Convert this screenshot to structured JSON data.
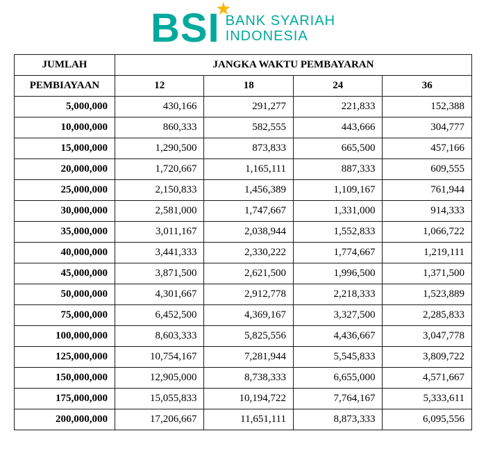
{
  "logo": {
    "abbrev": "BSI",
    "line1": "BANK SYARIAH",
    "line2": "INDONESIA",
    "brand_color": "#00a99d",
    "accent_color": "#f7b500"
  },
  "table": {
    "type": "table",
    "header_jumlah": "JUMLAH",
    "header_pembiayaan": "PEMBIAYAAN",
    "header_jangka": "JANGKA WAKTU PEMBAYARAN",
    "term_labels": [
      "12",
      "18",
      "24",
      "36"
    ],
    "border_color": "#1a1a1a",
    "text_color": "#000000",
    "background_color": "#ffffff",
    "header_fontsize": 15,
    "cell_fontsize": 15,
    "amount_align": "right",
    "value_align": "right",
    "column_widths_pct": [
      22,
      19.5,
      19.5,
      19.5,
      19.5
    ],
    "rows": [
      {
        "amount": "5,000,000",
        "v": [
          "430,166",
          "291,277",
          "221,833",
          "152,388"
        ]
      },
      {
        "amount": "10,000,000",
        "v": [
          "860,333",
          "582,555",
          "443,666",
          "304,777"
        ]
      },
      {
        "amount": "15,000,000",
        "v": [
          "1,290,500",
          "873,833",
          "665,500",
          "457,166"
        ]
      },
      {
        "amount": "20,000,000",
        "v": [
          "1,720,667",
          "1,165,111",
          "887,333",
          "609,555"
        ]
      },
      {
        "amount": "25,000,000",
        "v": [
          "2,150,833",
          "1,456,389",
          "1,109,167",
          "761,944"
        ]
      },
      {
        "amount": "30,000,000",
        "v": [
          "2,581,000",
          "1,747,667",
          "1,331,000",
          "914,333"
        ]
      },
      {
        "amount": "35,000,000",
        "v": [
          "3,011,167",
          "2,038,944",
          "1,552,833",
          "1,066,722"
        ]
      },
      {
        "amount": "40,000,000",
        "v": [
          "3,441,333",
          "2,330,222",
          "1,774,667",
          "1,219,111"
        ]
      },
      {
        "amount": "45,000,000",
        "v": [
          "3,871,500",
          "2,621,500",
          "1,996,500",
          "1,371,500"
        ]
      },
      {
        "amount": "50,000,000",
        "v": [
          "4,301,667",
          "2,912,778",
          "2,218,333",
          "1,523,889"
        ]
      },
      {
        "amount": "75,000,000",
        "v": [
          "6,452,500",
          "4,369,167",
          "3,327,500",
          "2,285,833"
        ]
      },
      {
        "amount": "100,000,000",
        "v": [
          "8,603,333",
          "5,825,556",
          "4,436,667",
          "3,047,778"
        ]
      },
      {
        "amount": "125,000,000",
        "v": [
          "10,754,167",
          "7,281,944",
          "5,545,833",
          "3,809,722"
        ]
      },
      {
        "amount": "150,000,000",
        "v": [
          "12,905,000",
          "8,738,333",
          "6,655,000",
          "4,571,667"
        ]
      },
      {
        "amount": "175,000,000",
        "v": [
          "15,055,833",
          "10,194,722",
          "7,764,167",
          "5,333,611"
        ]
      },
      {
        "amount": "200,000,000",
        "v": [
          "17,206,667",
          "11,651,111",
          "8,873,333",
          "6,095,556"
        ]
      }
    ]
  }
}
